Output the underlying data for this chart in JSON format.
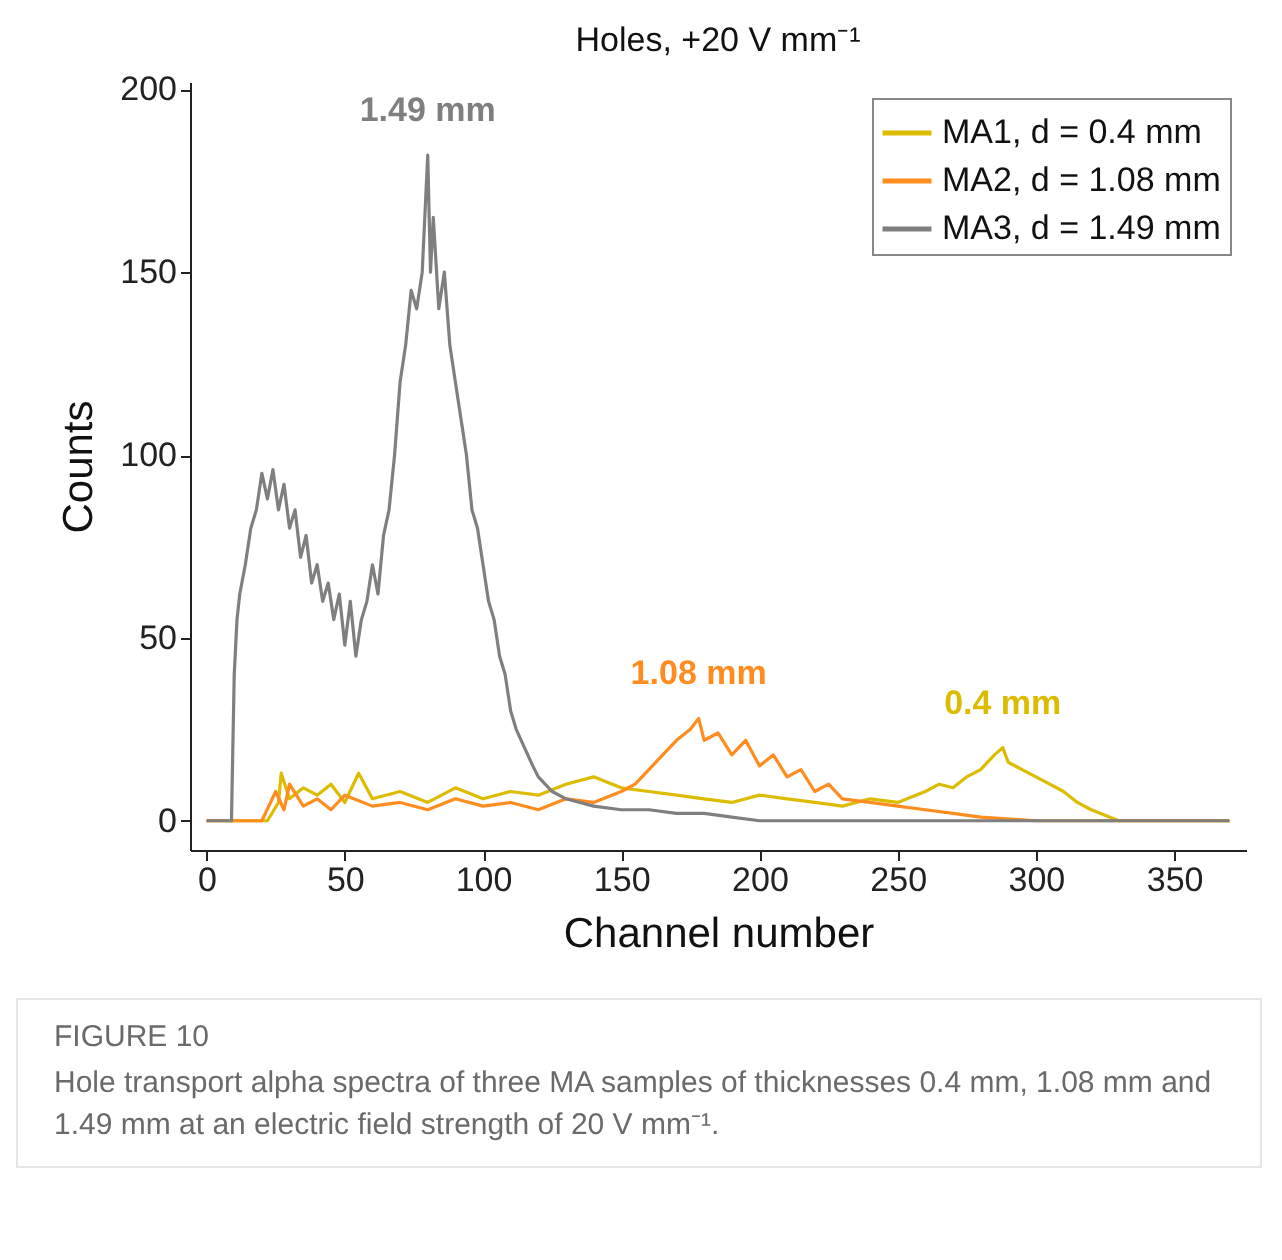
{
  "chart_data": {
    "type": "line",
    "title": "Holes, +20 V mm⁻¹",
    "xlabel": "Channel number",
    "ylabel": "Counts",
    "xlim": [
      -6,
      376
    ],
    "ylim": [
      -8,
      202
    ],
    "xticks": [
      0,
      50,
      100,
      150,
      200,
      250,
      300,
      350
    ],
    "yticks": [
      0,
      50,
      100,
      150,
      200
    ],
    "grid": false,
    "legend": "top right",
    "series": [
      {
        "name": "MA1, d = 0.4 mm",
        "color": "#dcbc00",
        "x": [
          0,
          22,
          26,
          27,
          30,
          35,
          40,
          45,
          50,
          55,
          60,
          70,
          80,
          90,
          100,
          110,
          120,
          130,
          140,
          150,
          160,
          170,
          180,
          190,
          200,
          210,
          220,
          230,
          240,
          250,
          260,
          265,
          270,
          275,
          280,
          285,
          288,
          290,
          295,
          300,
          305,
          310,
          315,
          320,
          330,
          370
        ],
        "values": [
          0,
          0,
          5,
          13,
          6,
          9,
          7,
          10,
          5,
          13,
          6,
          8,
          5,
          9,
          6,
          8,
          7,
          10,
          12,
          9,
          8,
          7,
          6,
          5,
          7,
          6,
          5,
          4,
          6,
          5,
          8,
          10,
          9,
          12,
          14,
          18,
          20,
          16,
          14,
          12,
          10,
          8,
          5,
          3,
          0,
          0
        ]
      },
      {
        "name": "MA2, d = 1.08 mm",
        "color": "#ff8c1f",
        "x": [
          0,
          20,
          25,
          28,
          30,
          35,
          40,
          45,
          50,
          60,
          70,
          80,
          90,
          100,
          110,
          120,
          130,
          140,
          150,
          155,
          160,
          165,
          170,
          175,
          178,
          180,
          185,
          190,
          195,
          200,
          205,
          210,
          215,
          220,
          225,
          230,
          240,
          250,
          260,
          270,
          280,
          300,
          370
        ],
        "values": [
          0,
          0,
          8,
          3,
          10,
          4,
          6,
          3,
          7,
          4,
          5,
          3,
          6,
          4,
          5,
          3,
          6,
          5,
          8,
          10,
          14,
          18,
          22,
          25,
          28,
          22,
          24,
          18,
          22,
          15,
          18,
          12,
          14,
          8,
          10,
          6,
          5,
          4,
          3,
          2,
          1,
          0,
          0
        ]
      },
      {
        "name": "MA3, d = 1.49 mm",
        "color": "#7f7f7f",
        "x": [
          0,
          9,
          10,
          11,
          12,
          14,
          16,
          18,
          20,
          22,
          24,
          26,
          28,
          30,
          32,
          34,
          36,
          38,
          40,
          42,
          44,
          46,
          48,
          50,
          52,
          54,
          56,
          58,
          60,
          62,
          64,
          66,
          68,
          70,
          72,
          74,
          76,
          78,
          80,
          81,
          82,
          84,
          86,
          88,
          90,
          92,
          94,
          96,
          98,
          100,
          102,
          104,
          106,
          108,
          110,
          112,
          115,
          118,
          120,
          125,
          130,
          135,
          140,
          150,
          160,
          170,
          180,
          190,
          200,
          250,
          300,
          370
        ],
        "values": [
          0,
          0,
          40,
          55,
          62,
          70,
          80,
          85,
          95,
          88,
          96,
          85,
          92,
          80,
          85,
          72,
          78,
          65,
          70,
          60,
          65,
          55,
          62,
          48,
          60,
          45,
          55,
          60,
          70,
          62,
          78,
          85,
          100,
          120,
          130,
          145,
          140,
          150,
          182,
          150,
          165,
          140,
          150,
          130,
          120,
          110,
          100,
          85,
          80,
          70,
          60,
          55,
          45,
          40,
          30,
          25,
          20,
          15,
          12,
          8,
          6,
          5,
          4,
          3,
          3,
          2,
          2,
          1,
          0,
          0,
          0,
          0
        ]
      }
    ],
    "annotations": [
      "0.4 mm",
      "1.08 mm",
      "1.49 mm",
      "FIGURE 10",
      "Hole transport alpha spectra of three MA samples of thicknesses 0.4 mm, 1.08 mm and 1.49 mm at an electric field strength of 20 V mm⁻¹."
    ]
  }
}
